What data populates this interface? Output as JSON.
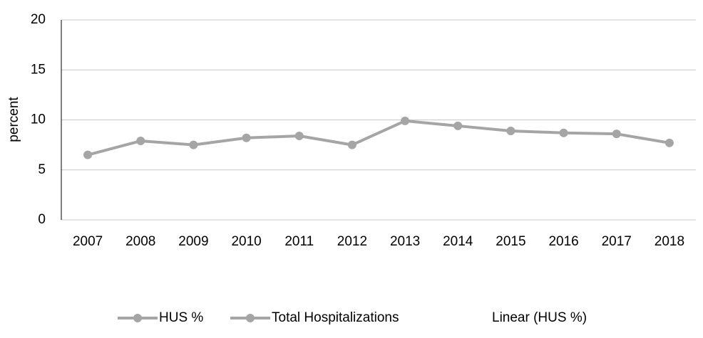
{
  "chart_data": {
    "type": "line",
    "y_label": "percent",
    "categories": [
      "2007",
      "2008",
      "2009",
      "2010",
      "2011",
      "2012",
      "2013",
      "2014",
      "2015",
      "2016",
      "2017",
      "2018"
    ],
    "series": [
      {
        "name": "HUS %",
        "color": "#a5a5a5",
        "values": [
          6.5,
          7.9,
          7.5,
          8.2,
          8.4,
          7.5,
          9.9,
          9.4,
          8.9,
          8.7,
          8.6,
          7.7
        ]
      },
      {
        "name": "Total Hospitalizations",
        "color": "#a5a5a5",
        "values": [
          null,
          null,
          null,
          null,
          null,
          null,
          null,
          null,
          null,
          null,
          null,
          null
        ]
      },
      {
        "name": "Linear (HUS %)",
        "values": [
          null,
          null,
          null,
          null,
          null,
          null,
          null,
          null,
          null,
          null,
          null,
          null
        ]
      }
    ],
    "ylim": [
      0,
      20
    ],
    "yticks": [
      0,
      5,
      10,
      15,
      20
    ],
    "grid": true
  }
}
